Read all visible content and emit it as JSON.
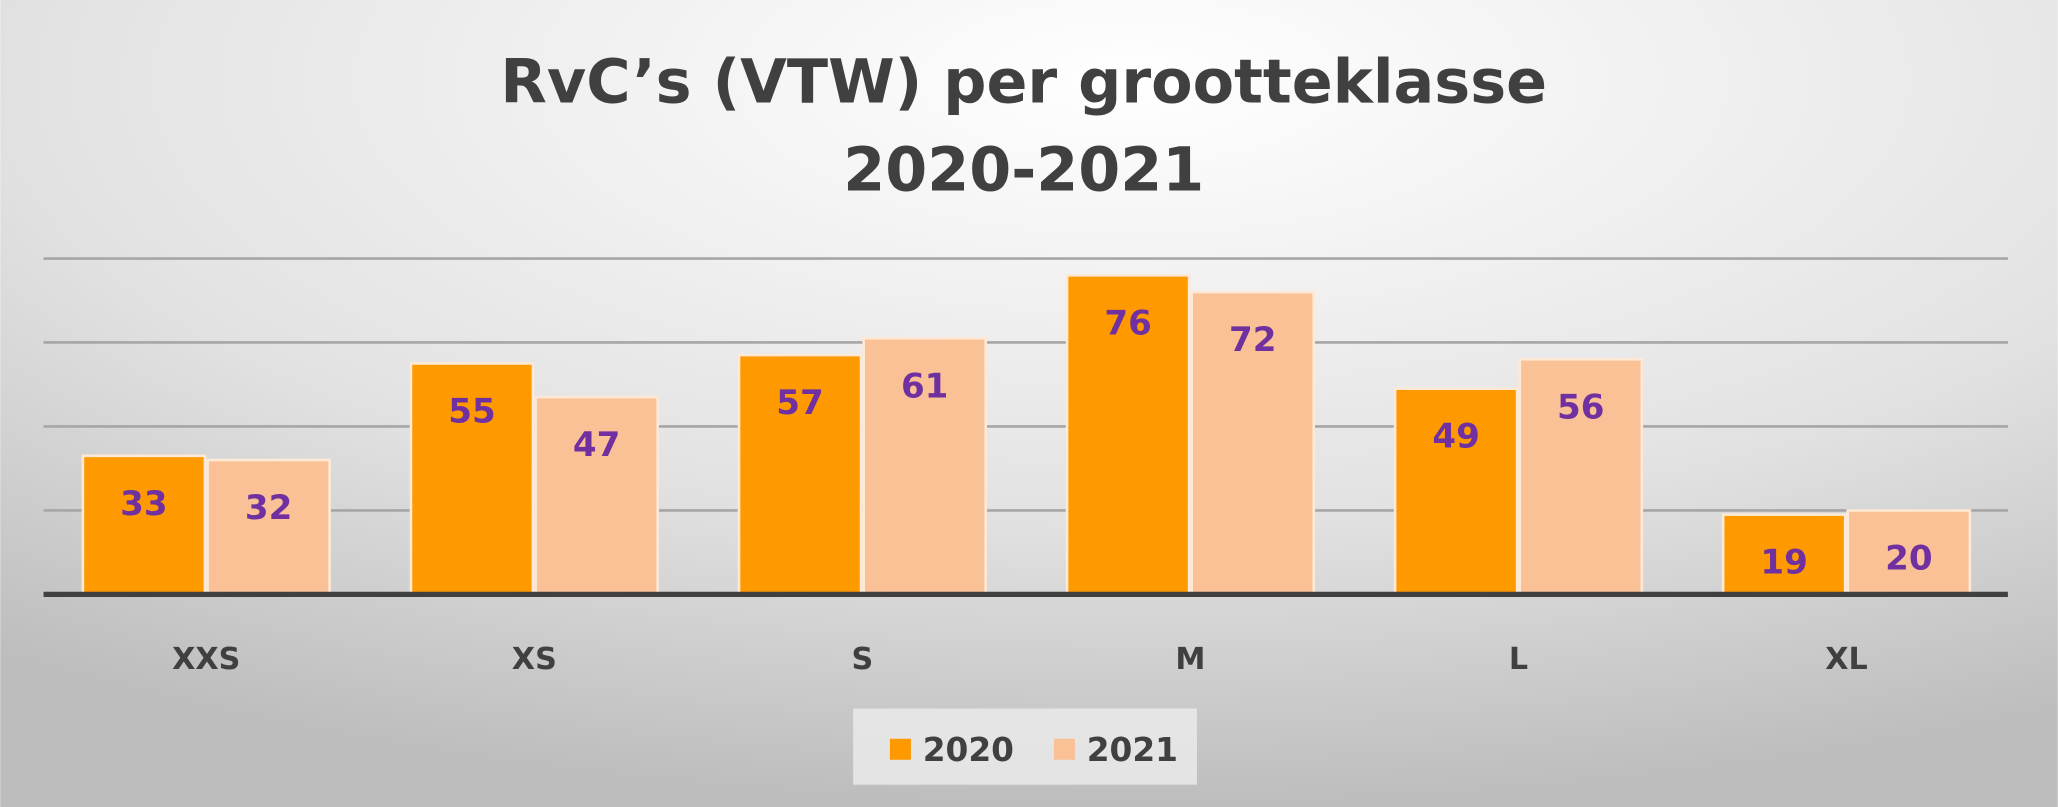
{
  "chart_data": {
    "type": "bar",
    "title": [
      "RvC’s (VTW) per grootteklasse",
      "2020-2021"
    ],
    "xlabel": "",
    "ylabel": "",
    "categories": [
      "XXS",
      "XS",
      "S",
      "M",
      "L",
      "XL"
    ],
    "series": [
      {
        "name": "2020",
        "values": [
          33,
          55,
          57,
          76,
          49,
          19
        ],
        "color": "#FF9900"
      },
      {
        "name": "2021",
        "values": [
          32,
          47,
          61,
          72,
          56,
          20
        ],
        "color": "#F9C195"
      }
    ],
    "ylim": [
      0,
      80
    ],
    "gridlines": [
      20,
      40,
      60,
      80
    ],
    "grid": true,
    "legend": "bottom-center",
    "data_label_color": "#7030A0",
    "text_color": "#404040"
  }
}
